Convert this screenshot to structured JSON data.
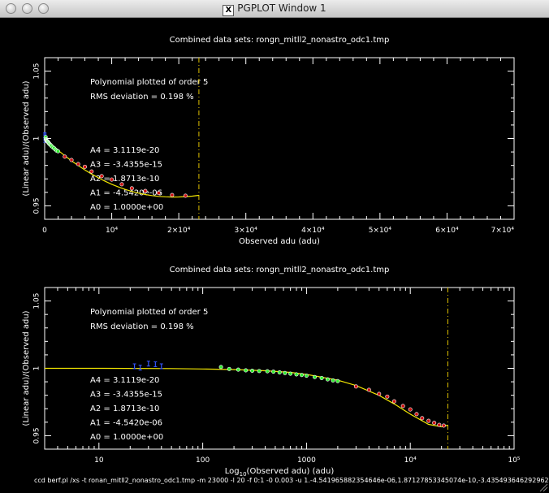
{
  "window": {
    "title": "PGPLOT Window 1",
    "x_logo": "X",
    "traffic_lights": [
      "close",
      "minimize",
      "zoom"
    ]
  },
  "colors": {
    "background": "#000000",
    "foreground": "#ffffff",
    "fit_line": "#f2e600",
    "limit_line": "#e0c200",
    "red_points": "#cc1111",
    "green_points": "#33ee33",
    "blue_points": "#3355ff"
  },
  "command_line": "ccd berf.pl /xs -t ronan_mitll2_nonastro_odc1.tmp -m 23000 -l 20 -f 0:1 -0 0.003 -u 1.-4.541965882354646e-06,1.87127853345074e-10,-3.435493646292962e-15,3.11",
  "chart_data": [
    {
      "type": "scatter",
      "title": "Combined data sets: rongn_mitll2_nonastro_odc1.tmp",
      "xlabel": "Observed adu (adu)",
      "ylabel": "(Linear adu)/(Observed adu)",
      "x_scale": "linear",
      "xlim": [
        0,
        70000
      ],
      "ylim": [
        0.94,
        1.06
      ],
      "x_tick_labels": [
        "0",
        "10⁴",
        "2×10⁴",
        "3×10⁴",
        "4×10⁴",
        "5×10⁴",
        "6×10⁴",
        "7×10⁴"
      ],
      "y_tick_labels": [
        "0.95",
        "1",
        "1.05"
      ],
      "annotations": {
        "poly_order": "Polynomial plotted of order  5",
        "rms": "RMS deviation =     0.198 %",
        "a4": "A4 = 3.1119e-20",
        "a3": "A3 = -3.4355e-15",
        "a2": "A2 = 1.8713e-10",
        "a1": "A1 = -4.5420e-06",
        "a0": "A0 = 1.0000e+00"
      },
      "limit_line_x": 23000,
      "fit_curve": [
        [
          0,
          1.0
        ],
        [
          1000,
          0.9955
        ],
        [
          2000,
          0.9912
        ],
        [
          3000,
          0.9872
        ],
        [
          4000,
          0.9834
        ],
        [
          5000,
          0.9799
        ],
        [
          6000,
          0.9766
        ],
        [
          7000,
          0.9736
        ],
        [
          8000,
          0.9708
        ],
        [
          9000,
          0.9683
        ],
        [
          10000,
          0.966
        ],
        [
          11000,
          0.964
        ],
        [
          12000,
          0.9622
        ],
        [
          13000,
          0.9607
        ],
        [
          14000,
          0.9594
        ],
        [
          15000,
          0.9584
        ],
        [
          16000,
          0.9576
        ],
        [
          17000,
          0.957
        ],
        [
          18000,
          0.9567
        ],
        [
          19000,
          0.9565
        ],
        [
          20000,
          0.9566
        ],
        [
          21000,
          0.9568
        ],
        [
          22000,
          0.9572
        ],
        [
          23000,
          0.9578
        ]
      ],
      "series": [
        {
          "name": "blue",
          "color": "#3355ff",
          "points": [
            [
              25,
              1.0015
            ],
            [
              30,
              1.0025
            ],
            [
              35,
              1.0005
            ],
            [
              40,
              0.999
            ],
            [
              45,
              1.0015
            ]
          ]
        },
        {
          "name": "green",
          "color": "#33ee33",
          "points": [
            [
              150,
              1.001
            ],
            [
              180,
              0.9995
            ],
            [
              220,
              0.999
            ],
            [
              260,
              0.9985
            ],
            [
              300,
              0.9982
            ],
            [
              350,
              0.998
            ],
            [
              420,
              0.9978
            ],
            [
              480,
              0.9975
            ],
            [
              550,
              0.997
            ],
            [
              620,
              0.9965
            ],
            [
              700,
              0.996
            ],
            [
              800,
              0.9955
            ],
            [
              900,
              0.995
            ],
            [
              1000,
              0.9945
            ],
            [
              1200,
              0.9935
            ],
            [
              1400,
              0.9928
            ],
            [
              1600,
              0.9918
            ],
            [
              1800,
              0.991
            ],
            [
              2000,
              0.9905
            ]
          ]
        },
        {
          "name": "red",
          "color": "#cc1111",
          "points": [
            [
              3000,
              0.9865
            ],
            [
              4000,
              0.984
            ],
            [
              5000,
              0.981
            ],
            [
              6000,
              0.979
            ],
            [
              7000,
              0.9755
            ],
            [
              8500,
              0.972
            ],
            [
              10000,
              0.9695
            ],
            [
              11500,
              0.966
            ],
            [
              13000,
              0.963
            ],
            [
              15000,
              0.961
            ],
            [
              17000,
              0.9595
            ],
            [
              19000,
              0.958
            ],
            [
              21000,
              0.9575
            ]
          ]
        }
      ]
    },
    {
      "type": "scatter",
      "title": "Combined data sets: rongn_mitll2_nonastro_odc1.tmp",
      "xlabel_prefix": "Log",
      "xlabel_sub": "10",
      "xlabel_suffix": "(Observed adu) (adu)",
      "ylabel": "(Linear adu)/(Observed adu)",
      "x_scale": "log",
      "xlim": [
        3,
        100000
      ],
      "ylim": [
        0.94,
        1.06
      ],
      "x_tick_labels": [
        "10",
        "100",
        "1000",
        "10⁴",
        "10⁵"
      ],
      "y_tick_labels": [
        "0.95",
        "1",
        "1.05"
      ],
      "annotations": {
        "poly_order": "Polynomial plotted of order  5",
        "rms": "RMS deviation =     0.198 %",
        "a4": "A4 = 3.1119e-20",
        "a3": "A3 = -3.4355e-15",
        "a2": "A2 = 1.8713e-10",
        "a1": "A1 = -4.5420e-06",
        "a0": "A0 = 1.0000e+00"
      },
      "limit_line_x": 23000,
      "fit_curve": [
        [
          3,
          1.0
        ],
        [
          10,
          1.0
        ],
        [
          50,
          0.9998
        ],
        [
          100,
          0.9995
        ],
        [
          200,
          0.9991
        ],
        [
          400,
          0.9982
        ],
        [
          700,
          0.997
        ],
        [
          1000,
          0.9955
        ],
        [
          2000,
          0.9912
        ],
        [
          3000,
          0.9872
        ],
        [
          5000,
          0.9799
        ],
        [
          7000,
          0.9736
        ],
        [
          10000,
          0.966
        ],
        [
          15000,
          0.9584
        ],
        [
          20000,
          0.9566
        ],
        [
          23000,
          0.9578
        ]
      ],
      "series": [
        {
          "name": "blue",
          "color": "#3355ff",
          "points": [
            [
              22,
              1.0015
            ],
            [
              25,
              1.0005
            ],
            [
              30,
              1.0035
            ],
            [
              35,
              1.003
            ],
            [
              40,
              1.0015
            ]
          ]
        },
        {
          "name": "green",
          "color": "#33ee33",
          "points": [
            [
              150,
              1.001
            ],
            [
              180,
              0.9995
            ],
            [
              220,
              0.999
            ],
            [
              260,
              0.9985
            ],
            [
              300,
              0.9982
            ],
            [
              350,
              0.998
            ],
            [
              420,
              0.9978
            ],
            [
              480,
              0.9975
            ],
            [
              550,
              0.997
            ],
            [
              620,
              0.9965
            ],
            [
              700,
              0.996
            ],
            [
              800,
              0.9955
            ],
            [
              900,
              0.995
            ],
            [
              1000,
              0.9945
            ],
            [
              1200,
              0.9935
            ],
            [
              1400,
              0.9928
            ],
            [
              1600,
              0.9918
            ],
            [
              1800,
              0.991
            ],
            [
              2000,
              0.9905
            ]
          ]
        },
        {
          "name": "red",
          "color": "#cc1111",
          "points": [
            [
              3000,
              0.9865
            ],
            [
              4000,
              0.984
            ],
            [
              5000,
              0.981
            ],
            [
              6000,
              0.979
            ],
            [
              7000,
              0.9755
            ],
            [
              8500,
              0.972
            ],
            [
              10000,
              0.9695
            ],
            [
              11500,
              0.966
            ],
            [
              13000,
              0.963
            ],
            [
              15000,
              0.961
            ],
            [
              17000,
              0.9595
            ],
            [
              19000,
              0.958
            ],
            [
              21000,
              0.9575
            ]
          ]
        }
      ]
    }
  ]
}
